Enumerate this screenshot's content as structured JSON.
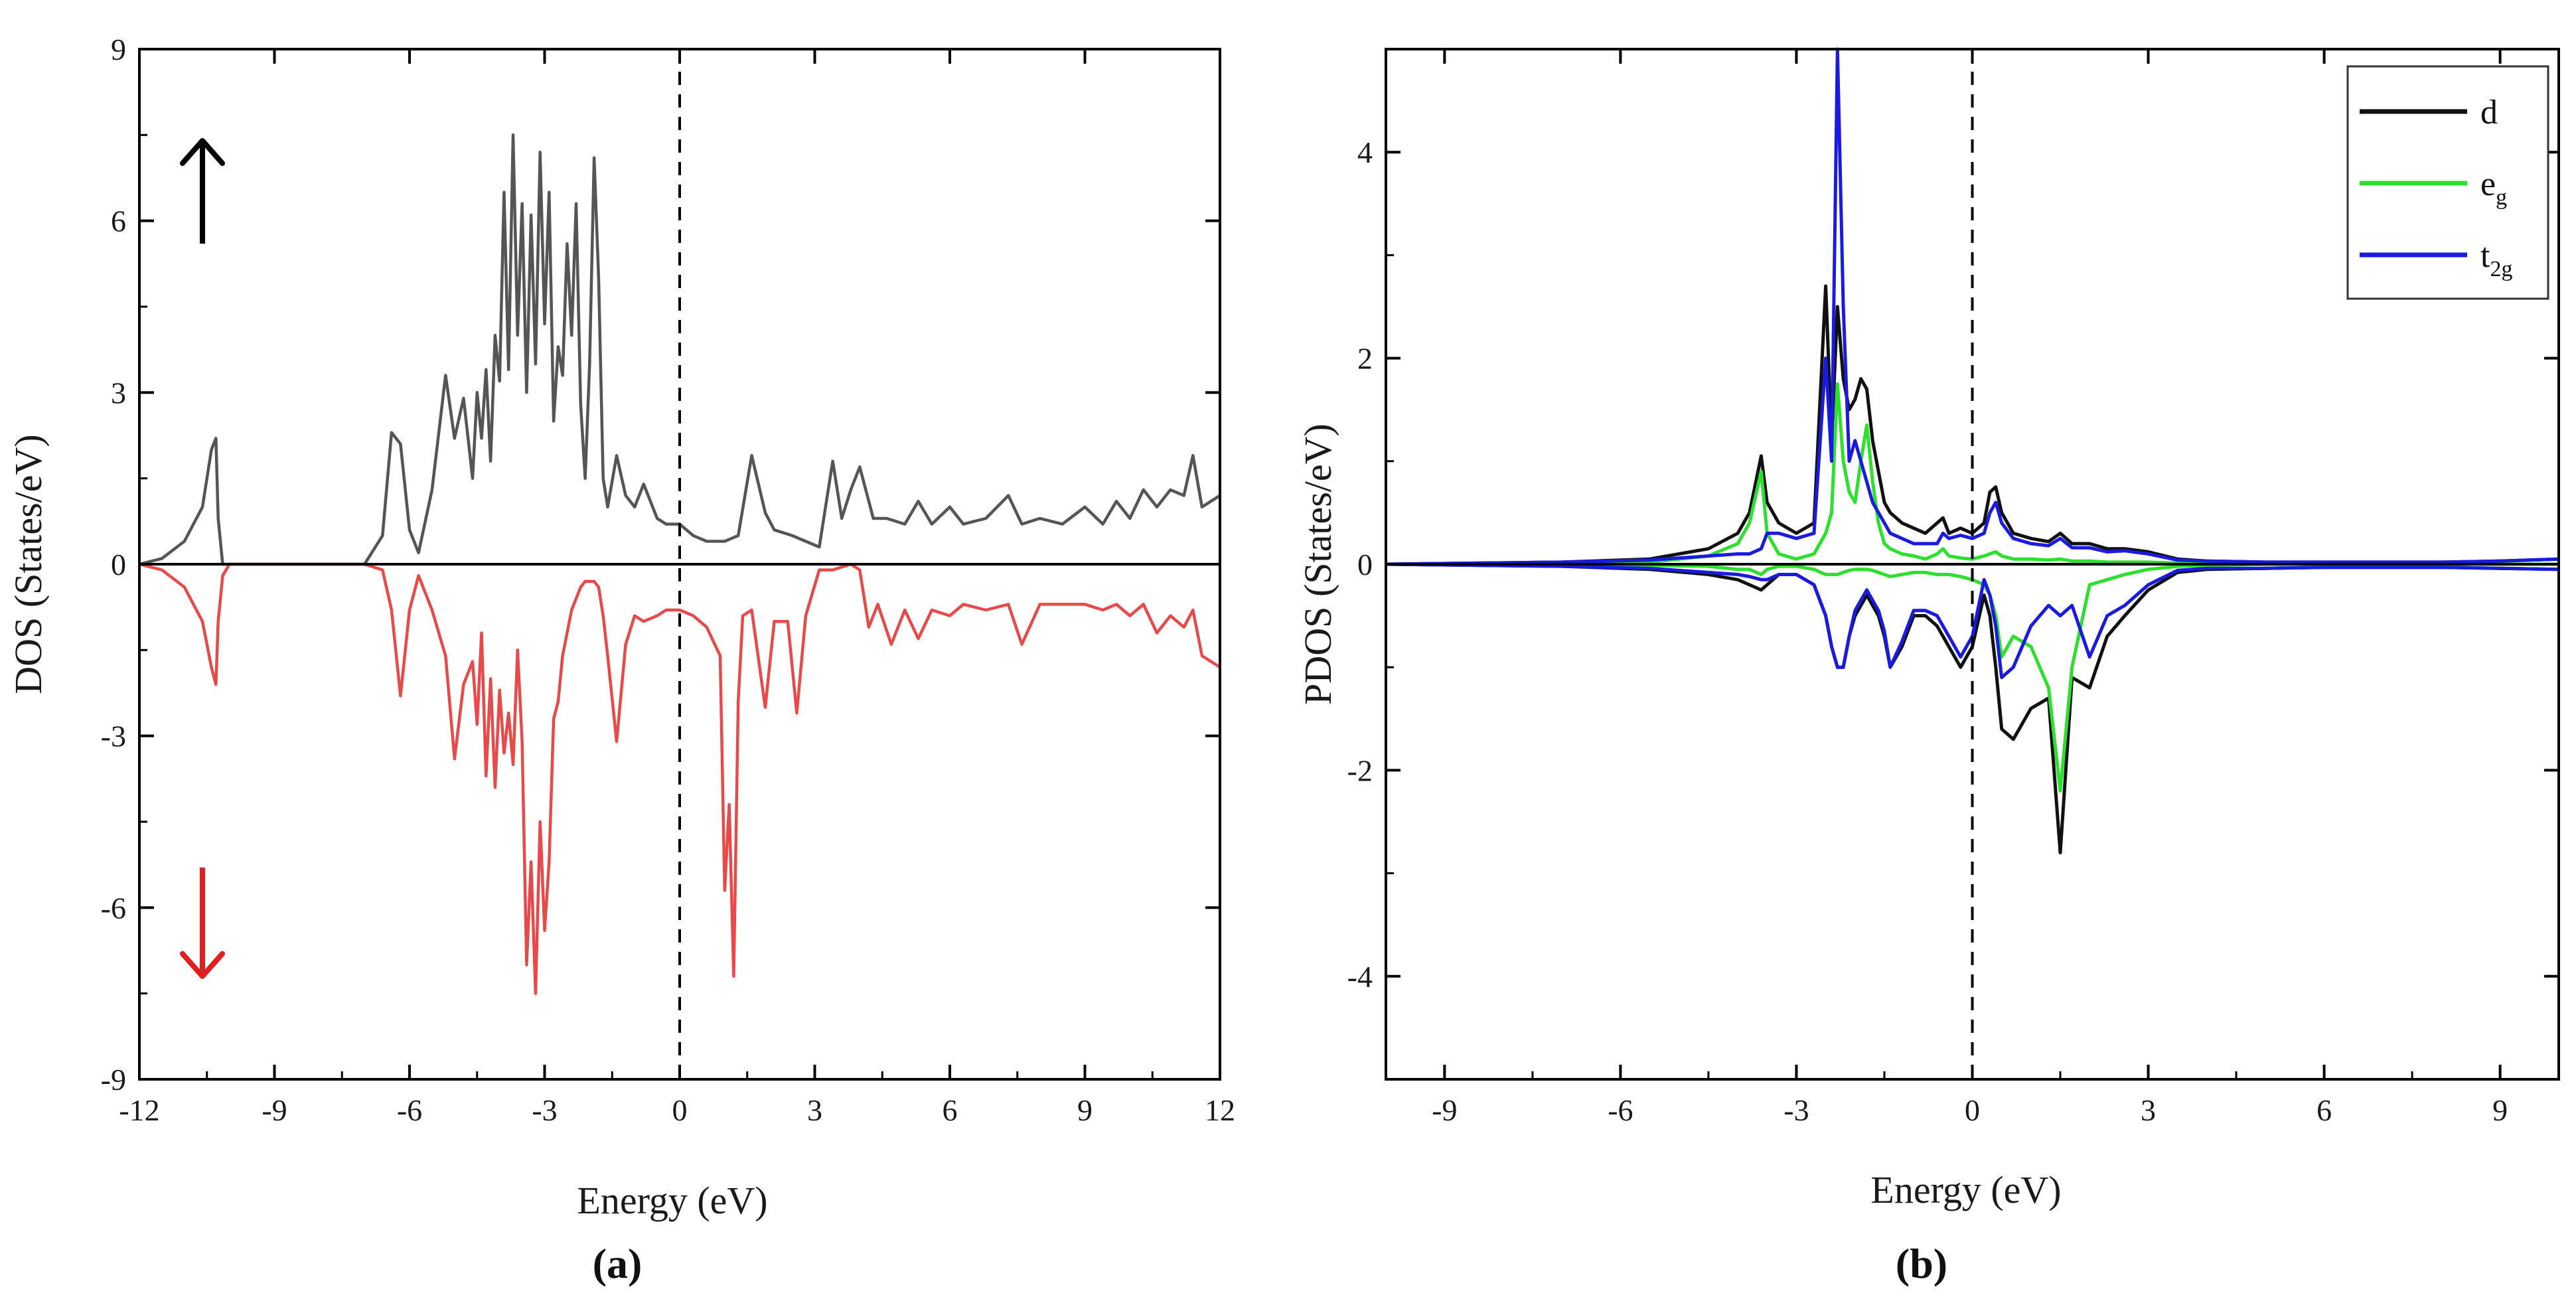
{
  "figure": {
    "panel_a_label": "(a)",
    "panel_b_label": "(b)"
  },
  "chart_data": [
    {
      "type": "line",
      "panel": "a",
      "title": "",
      "xlabel": "Energy (eV)",
      "ylabel": "DOS (States/eV)",
      "xlim": [
        -12,
        12
      ],
      "ylim": [
        -9,
        9
      ],
      "xticks": [
        -12,
        -9,
        -6,
        -3,
        0,
        3,
        6,
        9,
        12
      ],
      "yticks": [
        -9,
        -6,
        -3,
        0,
        3,
        6,
        9
      ],
      "xtick_labels": [
        "-12",
        "-9",
        "-6",
        "-3",
        "0",
        "3",
        "6",
        "9",
        "12"
      ],
      "ytick_labels": [
        "-9",
        "-6",
        "-3",
        "0",
        "3",
        "6",
        "9"
      ],
      "fermi_level": 0,
      "annotations": [
        {
          "name": "spin-up-arrow",
          "direction": "up",
          "color": "#000000",
          "x": -10.6,
          "y_from": 5.6,
          "y_to": 7.4
        },
        {
          "name": "spin-down-arrow",
          "direction": "down",
          "color": "#e02020",
          "x": -10.6,
          "y_from": -5.3,
          "y_to": -7.2
        }
      ],
      "series": [
        {
          "name": "spin up",
          "color": "#555555",
          "x": [
            -12,
            -11.5,
            -11,
            -10.6,
            -10.4,
            -10.3,
            -10.25,
            -10.15,
            -10,
            -8,
            -7,
            -6.6,
            -6.4,
            -6.2,
            -6.0,
            -5.8,
            -5.5,
            -5.2,
            -5.0,
            -4.8,
            -4.6,
            -4.5,
            -4.4,
            -4.3,
            -4.2,
            -4.1,
            -4.0,
            -3.9,
            -3.8,
            -3.7,
            -3.6,
            -3.5,
            -3.4,
            -3.3,
            -3.2,
            -3.1,
            -3.0,
            -2.9,
            -2.8,
            -2.7,
            -2.6,
            -2.5,
            -2.4,
            -2.3,
            -2.2,
            -2.1,
            -2.0,
            -1.9,
            -1.8,
            -1.7,
            -1.6,
            -1.4,
            -1.2,
            -1.0,
            -0.8,
            -0.5,
            -0.3,
            0,
            0.3,
            0.6,
            1.0,
            1.3,
            1.6,
            1.9,
            2.1,
            2.5,
            2.8,
            3.1,
            3.4,
            3.6,
            3.8,
            4.0,
            4.3,
            4.6,
            5.0,
            5.3,
            5.6,
            6.0,
            6.3,
            6.8,
            7.3,
            7.6,
            8.0,
            8.5,
            9.0,
            9.4,
            9.7,
            10.0,
            10.3,
            10.6,
            10.9,
            11.2,
            11.4,
            11.6,
            12
          ],
          "y": [
            0,
            0.1,
            0.4,
            1.0,
            2.0,
            2.2,
            0.8,
            0,
            0,
            0,
            0,
            0.5,
            2.3,
            2.1,
            0.6,
            0.2,
            1.3,
            3.3,
            2.2,
            2.9,
            1.5,
            3.0,
            2.2,
            3.4,
            1.8,
            4.0,
            3.2,
            6.5,
            3.4,
            7.5,
            4.0,
            6.3,
            3.0,
            6.1,
            3.5,
            7.2,
            4.2,
            6.5,
            2.5,
            3.8,
            3.3,
            5.6,
            4.0,
            6.3,
            2.8,
            1.5,
            3.5,
            7.1,
            5.0,
            1.5,
            1.0,
            1.9,
            1.2,
            1.0,
            1.4,
            0.8,
            0.7,
            0.7,
            0.5,
            0.4,
            0.4,
            0.5,
            1.9,
            0.9,
            0.6,
            0.5,
            0.4,
            0.3,
            1.8,
            0.8,
            1.3,
            1.7,
            0.8,
            0.8,
            0.7,
            1.1,
            0.7,
            1.0,
            0.7,
            0.8,
            1.2,
            0.7,
            0.8,
            0.7,
            1.0,
            0.7,
            1.1,
            0.8,
            1.3,
            1.0,
            1.3,
            1.2,
            1.9,
            1.0,
            1.2
          ]
        },
        {
          "name": "spin down",
          "color": "#e84a4a",
          "x": [
            -12,
            -11.5,
            -11,
            -10.6,
            -10.4,
            -10.3,
            -10.25,
            -10.15,
            -10,
            -8,
            -7,
            -6.6,
            -6.4,
            -6.2,
            -6.0,
            -5.8,
            -5.5,
            -5.2,
            -5.0,
            -4.8,
            -4.6,
            -4.5,
            -4.4,
            -4.3,
            -4.2,
            -4.1,
            -4.0,
            -3.9,
            -3.8,
            -3.7,
            -3.6,
            -3.5,
            -3.4,
            -3.3,
            -3.2,
            -3.1,
            -3.0,
            -2.9,
            -2.8,
            -2.7,
            -2.6,
            -2.5,
            -2.4,
            -2.3,
            -2.2,
            -2.1,
            -2.0,
            -1.9,
            -1.8,
            -1.7,
            -1.6,
            -1.4,
            -1.2,
            -1.0,
            -0.8,
            -0.5,
            -0.3,
            0,
            0.3,
            0.6,
            0.9,
            1.0,
            1.1,
            1.2,
            1.3,
            1.4,
            1.6,
            1.9,
            2.1,
            2.4,
            2.6,
            2.8,
            3.1,
            3.4,
            3.8,
            4.0,
            4.2,
            4.4,
            4.7,
            5.0,
            5.3,
            5.6,
            6.0,
            6.3,
            6.8,
            7.3,
            7.6,
            8.0,
            8.5,
            9.0,
            9.4,
            9.7,
            10.0,
            10.3,
            10.6,
            10.9,
            11.2,
            11.4,
            11.6,
            12
          ],
          "y": [
            0,
            -0.1,
            -0.4,
            -1.0,
            -1.8,
            -2.1,
            -1.0,
            -0.2,
            0,
            0,
            0,
            -0.1,
            -0.8,
            -2.3,
            -0.8,
            -0.2,
            -0.8,
            -1.6,
            -3.4,
            -2.1,
            -1.7,
            -2.8,
            -1.2,
            -3.7,
            -2.0,
            -3.9,
            -2.2,
            -3.3,
            -2.6,
            -3.5,
            -1.5,
            -3.1,
            -7.0,
            -5.2,
            -7.5,
            -4.5,
            -6.4,
            -5.2,
            -2.7,
            -2.4,
            -1.6,
            -1.2,
            -0.8,
            -0.6,
            -0.4,
            -0.3,
            -0.3,
            -0.3,
            -0.4,
            -0.9,
            -1.6,
            -3.1,
            -1.4,
            -0.9,
            -1.0,
            -0.9,
            -0.8,
            -0.8,
            -0.9,
            -1.1,
            -1.6,
            -5.7,
            -4.2,
            -7.2,
            -2.4,
            -0.9,
            -0.8,
            -2.5,
            -1.0,
            -1.0,
            -2.6,
            -0.9,
            -0.1,
            -0.1,
            0,
            -0.1,
            -1.1,
            -0.7,
            -1.4,
            -0.8,
            -1.3,
            -0.8,
            -0.9,
            -0.7,
            -0.8,
            -0.7,
            -1.4,
            -0.7,
            -0.7,
            -0.7,
            -0.8,
            -0.7,
            -0.9,
            -0.7,
            -1.2,
            -0.9,
            -1.1,
            -0.8,
            -1.6,
            -1.8
          ]
        }
      ]
    },
    {
      "type": "line",
      "panel": "b",
      "title": "",
      "xlabel": "Energy (eV)",
      "ylabel": "PDOS (States/eV)",
      "xlim": [
        -10,
        10
      ],
      "ylim": [
        -5,
        5
      ],
      "xticks": [
        -9,
        -6,
        -3,
        0,
        3,
        6,
        9
      ],
      "yticks": [
        -4,
        -2,
        0,
        2,
        4
      ],
      "xtick_labels": [
        "-9",
        "-6",
        "-3",
        "0",
        "3",
        "6",
        "9"
      ],
      "ytick_labels": [
        "-4",
        "-2",
        "0",
        "2",
        "4"
      ],
      "fermi_level": 0,
      "legend_position": "top-right",
      "series": [
        {
          "name": "d",
          "sub": "",
          "color": "#111111",
          "x": [
            -10,
            -7,
            -5.5,
            -4.5,
            -4.0,
            -3.8,
            -3.6,
            -3.5,
            -3.3,
            -3.0,
            -2.7,
            -2.5,
            -2.4,
            -2.3,
            -2.2,
            -2.1,
            -2.0,
            -1.9,
            -1.8,
            -1.7,
            -1.6,
            -1.5,
            -1.4,
            -1.2,
            -1.0,
            -0.8,
            -0.6,
            -0.5,
            -0.4,
            -0.2,
            0,
            0.2,
            0.3,
            0.4,
            0.5,
            0.7,
            1.0,
            1.3,
            1.5,
            1.7,
            2.0,
            2.3,
            2.6,
            3.0,
            3.5,
            4.0,
            5.0,
            6.0,
            7.0,
            8.0,
            9.0,
            10
          ],
          "up": [
            0,
            0.02,
            0.05,
            0.15,
            0.3,
            0.5,
            1.05,
            0.6,
            0.4,
            0.3,
            0.4,
            2.7,
            1.2,
            2.5,
            1.8,
            1.5,
            1.6,
            1.8,
            1.7,
            1.2,
            0.9,
            0.6,
            0.5,
            0.4,
            0.35,
            0.3,
            0.4,
            0.45,
            0.3,
            0.35,
            0.3,
            0.4,
            0.7,
            0.75,
            0.5,
            0.3,
            0.25,
            0.22,
            0.3,
            0.2,
            0.2,
            0.15,
            0.15,
            0.12,
            0.05,
            0.03,
            0.02,
            0.02,
            0.02,
            0.02,
            0.03,
            0.05
          ],
          "down": [
            0,
            -0.02,
            -0.05,
            -0.1,
            -0.15,
            -0.2,
            -0.25,
            -0.2,
            -0.1,
            -0.1,
            -0.2,
            -0.5,
            -0.8,
            -1.0,
            -1.0,
            -0.7,
            -0.5,
            -0.4,
            -0.3,
            -0.4,
            -0.5,
            -0.7,
            -1.0,
            -0.8,
            -0.5,
            -0.5,
            -0.6,
            -0.7,
            -0.8,
            -1.0,
            -0.8,
            -0.3,
            -0.5,
            -1.0,
            -1.6,
            -1.7,
            -1.4,
            -1.3,
            -2.8,
            -1.1,
            -1.2,
            -0.7,
            -0.5,
            -0.25,
            -0.08,
            -0.05,
            -0.04,
            -0.03,
            -0.03,
            -0.03,
            -0.04,
            -0.05
          ]
        },
        {
          "name": "e",
          "sub": "g",
          "color": "#2ee02e",
          "x": [
            -10,
            -7,
            -5.5,
            -4.5,
            -4.0,
            -3.8,
            -3.6,
            -3.5,
            -3.3,
            -3.0,
            -2.7,
            -2.5,
            -2.4,
            -2.3,
            -2.2,
            -2.1,
            -2.0,
            -1.9,
            -1.8,
            -1.7,
            -1.6,
            -1.5,
            -1.4,
            -1.2,
            -1.0,
            -0.8,
            -0.6,
            -0.5,
            -0.4,
            -0.2,
            0,
            0.2,
            0.3,
            0.4,
            0.5,
            0.7,
            1.0,
            1.3,
            1.5,
            1.7,
            2.0,
            2.3,
            2.6,
            3.0,
            3.5,
            4.0,
            5.0,
            6.0,
            7.0,
            8.0,
            9.0,
            10
          ],
          "up": [
            0,
            0,
            0.02,
            0.08,
            0.2,
            0.4,
            0.9,
            0.3,
            0.1,
            0.05,
            0.1,
            0.3,
            0.5,
            1.75,
            1.0,
            0.7,
            0.6,
            1.0,
            1.35,
            0.8,
            0.4,
            0.2,
            0.15,
            0.1,
            0.08,
            0.05,
            0.1,
            0.15,
            0.08,
            0.06,
            0.05,
            0.08,
            0.1,
            0.12,
            0.08,
            0.05,
            0.05,
            0.04,
            0.05,
            0.03,
            0.03,
            0.02,
            0.02,
            0.02,
            0.01,
            0.01,
            0,
            0,
            0,
            0,
            0,
            0
          ],
          "down": [
            0,
            0,
            -0.01,
            -0.02,
            -0.05,
            -0.05,
            -0.1,
            -0.05,
            -0.02,
            -0.02,
            -0.05,
            -0.1,
            -0.1,
            -0.1,
            -0.08,
            -0.06,
            -0.05,
            -0.05,
            -0.05,
            -0.06,
            -0.08,
            -0.1,
            -0.12,
            -0.1,
            -0.08,
            -0.08,
            -0.1,
            -0.1,
            -0.1,
            -0.12,
            -0.15,
            -0.2,
            -0.3,
            -0.5,
            -0.9,
            -0.7,
            -0.8,
            -1.2,
            -2.2,
            -1.0,
            -0.2,
            -0.15,
            -0.1,
            -0.05,
            -0.02,
            -0.01,
            0,
            0,
            0,
            0,
            0,
            0
          ]
        },
        {
          "name": "t",
          "sub": "2g",
          "color": "#1a1ae0",
          "x": [
            -10,
            -7,
            -5.5,
            -4.5,
            -4.0,
            -3.8,
            -3.6,
            -3.5,
            -3.3,
            -3.0,
            -2.7,
            -2.5,
            -2.4,
            -2.3,
            -2.2,
            -2.1,
            -2.0,
            -1.9,
            -1.8,
            -1.7,
            -1.6,
            -1.5,
            -1.4,
            -1.2,
            -1.0,
            -0.8,
            -0.6,
            -0.5,
            -0.4,
            -0.2,
            0,
            0.2,
            0.3,
            0.4,
            0.5,
            0.7,
            1.0,
            1.3,
            1.5,
            1.7,
            2.0,
            2.3,
            2.6,
            3.0,
            3.5,
            4.0,
            5.0,
            6.0,
            7.0,
            8.0,
            9.0,
            10
          ],
          "up": [
            0,
            0.02,
            0.04,
            0.08,
            0.1,
            0.1,
            0.15,
            0.3,
            0.3,
            0.25,
            0.3,
            2.0,
            1.0,
            5.0,
            2.5,
            1.0,
            1.2,
            1.0,
            0.8,
            0.6,
            0.5,
            0.4,
            0.3,
            0.25,
            0.2,
            0.2,
            0.2,
            0.3,
            0.25,
            0.28,
            0.25,
            0.3,
            0.5,
            0.6,
            0.4,
            0.25,
            0.2,
            0.18,
            0.25,
            0.16,
            0.16,
            0.12,
            0.13,
            0.1,
            0.04,
            0.03,
            0.02,
            0.02,
            0.02,
            0.02,
            0.03,
            0.05
          ],
          "down": [
            0,
            -0.02,
            -0.04,
            -0.08,
            -0.1,
            -0.12,
            -0.15,
            -0.15,
            -0.1,
            -0.1,
            -0.2,
            -0.5,
            -0.8,
            -1.0,
            -1.0,
            -0.7,
            -0.45,
            -0.35,
            -0.25,
            -0.35,
            -0.45,
            -0.65,
            -1.0,
            -0.75,
            -0.45,
            -0.45,
            -0.5,
            -0.6,
            -0.7,
            -0.9,
            -0.7,
            -0.15,
            -0.3,
            -0.6,
            -1.1,
            -1.0,
            -0.6,
            -0.4,
            -0.5,
            -0.4,
            -0.9,
            -0.5,
            -0.4,
            -0.2,
            -0.06,
            -0.04,
            -0.04,
            -0.03,
            -0.03,
            -0.03,
            -0.04,
            -0.05
          ]
        }
      ]
    }
  ]
}
